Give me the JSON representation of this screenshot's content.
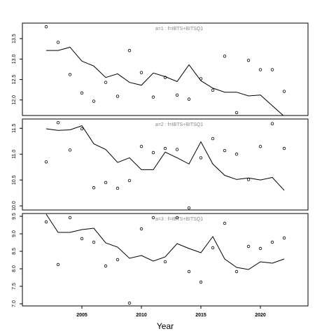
{
  "chart_data": [
    {
      "type": "line",
      "title": "a=1  :  f=IBTS+BITSQ1",
      "x": [
        2002,
        2003,
        2004,
        2005,
        2006,
        2007,
        2008,
        2009,
        2010,
        2011,
        2012,
        2013,
        2014,
        2015,
        2016,
        2017,
        2018,
        2019,
        2020,
        2021,
        2022
      ],
      "xlim": [
        2000,
        2024
      ],
      "ylim": [
        11.62,
        13.88
      ],
      "yticks": [
        {
          "value": 12,
          "label": "12.0"
        },
        12.5,
        {
          "value": 13,
          "label": "13.0"
        },
        13.5
      ],
      "series": [
        {
          "style": "points",
          "color": "#000000",
          "values": [
            13.79,
            13.41,
            12.62,
            12.17,
            11.97,
            12.43,
            12.09,
            13.21,
            12.67,
            12.07,
            12.55,
            12.12,
            12.02,
            12.52,
            12.24,
            13.07,
            11.69,
            12.97,
            12.74,
            12.74,
            12.21
          ]
        },
        {
          "style": "line",
          "color": "#000000",
          "values": [
            13.21,
            13.21,
            13.29,
            12.95,
            12.83,
            12.55,
            12.64,
            12.43,
            12.36,
            12.66,
            12.57,
            12.45,
            12.86,
            12.47,
            12.29,
            12.19,
            12.19,
            12.1,
            12.12,
            11.86,
            11.6
          ]
        }
      ]
    },
    {
      "type": "line",
      "title": "a=2  :  f=IBTS+BITSQ1",
      "x": [
        2002,
        2003,
        2004,
        2005,
        2006,
        2007,
        2008,
        2009,
        2010,
        2011,
        2012,
        2013,
        2014,
        2015,
        2016,
        2017,
        2018,
        2019,
        2020,
        2021,
        2022
      ],
      "xlim": [
        2000,
        2024
      ],
      "ylim": [
        9.92,
        11.68
      ],
      "yticks": [
        {
          "value": 10,
          "label": "10.0"
        },
        10.5,
        {
          "value": 11,
          "label": "11.0"
        },
        11.5
      ],
      "series": [
        {
          "style": "points",
          "color": "#000000",
          "values": [
            10.85,
            11.61,
            11.08,
            11.49,
            10.35,
            10.45,
            10.34,
            10.49,
            11.15,
            11.03,
            11.11,
            11.09,
            9.96,
            10.93,
            11.3,
            11.07,
            11.0,
            10.51,
            11.15,
            11.59,
            11.11
          ]
        },
        {
          "style": "line",
          "color": "#000000",
          "values": [
            11.49,
            11.46,
            11.47,
            11.55,
            11.2,
            11.09,
            10.84,
            10.93,
            10.7,
            10.7,
            11.04,
            10.93,
            10.81,
            11.24,
            10.81,
            10.59,
            10.51,
            10.54,
            10.5,
            10.55,
            10.3
          ]
        }
      ]
    },
    {
      "type": "line",
      "title": "a=3  :  f=IBTS+BITSQ1",
      "x": [
        2002,
        2003,
        2004,
        2005,
        2006,
        2007,
        2008,
        2009,
        2010,
        2011,
        2012,
        2013,
        2014,
        2015,
        2016,
        2017,
        2018,
        2019,
        2020,
        2021,
        2022
      ],
      "xlim": [
        2000,
        2024
      ],
      "ylim": [
        6.94,
        9.58
      ],
      "xlabel": "Year",
      "xticks": [
        2005,
        2010,
        2015,
        2020
      ],
      "yticks": [
        {
          "value": 7,
          "label": "7.0"
        },
        7.5,
        {
          "value": 8,
          "label": "8.0"
        },
        8.5,
        {
          "value": 9,
          "label": "9.0"
        },
        9.5
      ],
      "series": [
        {
          "style": "points",
          "color": "#000000",
          "values": [
            9.34,
            8.12,
            9.46,
            8.86,
            8.76,
            8.08,
            8.26,
            7.02,
            9.14,
            9.46,
            8.2,
            9.46,
            7.92,
            7.62,
            8.6,
            9.3,
            7.92,
            8.64,
            8.58,
            8.76,
            8.88
          ]
        },
        {
          "style": "line",
          "color": "#000000",
          "values": [
            9.56,
            9.04,
            9.04,
            9.12,
            9.16,
            8.74,
            8.62,
            8.3,
            8.38,
            8.22,
            8.34,
            8.72,
            8.58,
            8.46,
            8.92,
            8.28,
            8.04,
            7.98,
            8.2,
            8.16,
            8.28
          ]
        }
      ]
    }
  ]
}
